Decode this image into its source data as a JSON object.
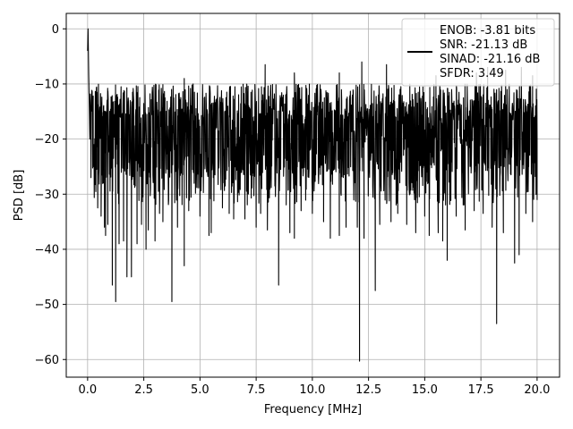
{
  "chart_data": {
    "type": "line",
    "title": "",
    "xlabel": "Frequency [MHz]",
    "ylabel": "PSD [dB]",
    "xlim": [
      -0.95,
      21.0
    ],
    "ylim": [
      -63.2,
      2.8
    ],
    "xticks": [
      0.0,
      2.5,
      5.0,
      7.5,
      10.0,
      12.5,
      15.0,
      17.5,
      20.0
    ],
    "xtick_labels": [
      "0.0",
      "2.5",
      "5.0",
      "7.5",
      "10.0",
      "12.5",
      "15.0",
      "17.5",
      "20.0"
    ],
    "yticks": [
      0,
      -10,
      -20,
      -30,
      -40,
      -50,
      -60
    ],
    "ytick_labels": [
      "0",
      "−10",
      "−20",
      "−30",
      "−40",
      "−50",
      "−60"
    ],
    "grid": true,
    "legend_position": "top-right",
    "series": [
      {
        "name": "ENOB: -3.81 bits\nSNR: -21.13 dB\nSINAD: -21.16 dB\nSFDR: 3.49",
        "color": "#000000",
        "x_range": [
          0.0,
          20.0
        ],
        "baseline_range": [
          -32,
          -10
        ],
        "points": [
          [
            0.0,
            -4.0
          ],
          [
            0.02,
            0.0
          ],
          [
            0.05,
            -8.5
          ],
          [
            0.08,
            -15.0
          ],
          [
            0.1,
            -20.0
          ],
          [
            0.15,
            -27.0
          ],
          [
            0.25,
            -23.0
          ],
          [
            0.4,
            -25.5
          ],
          [
            0.45,
            -32.5
          ],
          [
            0.6,
            -34.0
          ],
          [
            0.7,
            -28.0
          ],
          [
            0.75,
            -36.0
          ],
          [
            0.8,
            -37.5
          ],
          [
            0.9,
            -35.5
          ],
          [
            1.1,
            -46.5
          ],
          [
            1.25,
            -49.5
          ],
          [
            1.4,
            -39.0
          ],
          [
            1.6,
            -38.5
          ],
          [
            1.75,
            -45.0
          ],
          [
            1.95,
            -45.0
          ],
          [
            2.2,
            -39.0
          ],
          [
            2.4,
            -35.5
          ],
          [
            2.6,
            -40.0
          ],
          [
            2.7,
            -36.5
          ],
          [
            3.0,
            -38.5
          ],
          [
            3.2,
            -33.5
          ],
          [
            3.35,
            -35.0
          ],
          [
            3.75,
            -49.5
          ],
          [
            4.0,
            -36.0
          ],
          [
            4.3,
            -43.0
          ],
          [
            4.5,
            -33.0
          ],
          [
            5.0,
            -34.0
          ],
          [
            5.4,
            -37.5
          ],
          [
            5.5,
            -37.0
          ],
          [
            6.0,
            -32.5
          ],
          [
            6.3,
            -33.5
          ],
          [
            6.5,
            -34.5
          ],
          [
            7.0,
            -34.5
          ],
          [
            7.5,
            -36.0
          ],
          [
            7.7,
            -33.5
          ],
          [
            8.0,
            -36.5
          ],
          [
            8.5,
            -46.5
          ],
          [
            9.0,
            -37.0
          ],
          [
            9.2,
            -38.0
          ],
          [
            9.5,
            -33.0
          ],
          [
            10.0,
            -33.5
          ],
          [
            10.5,
            -35.0
          ],
          [
            10.8,
            -38.0
          ],
          [
            11.2,
            -37.5
          ],
          [
            11.5,
            -36.0
          ],
          [
            12.0,
            -36.0
          ],
          [
            12.1,
            -60.3
          ],
          [
            12.3,
            -38.0
          ],
          [
            12.8,
            -47.5
          ],
          [
            13.0,
            -35.5
          ],
          [
            13.5,
            -35.0
          ],
          [
            13.8,
            -33.5
          ],
          [
            14.2,
            -35.5
          ],
          [
            14.6,
            -37.0
          ],
          [
            15.0,
            -34.0
          ],
          [
            15.2,
            -37.5
          ],
          [
            15.6,
            -37.0
          ],
          [
            15.8,
            -38.5
          ],
          [
            16.0,
            -42.0
          ],
          [
            16.4,
            -34.0
          ],
          [
            16.8,
            -36.5
          ],
          [
            17.2,
            -33.0
          ],
          [
            17.6,
            -33.5
          ],
          [
            18.0,
            -36.0
          ],
          [
            18.2,
            -53.5
          ],
          [
            18.5,
            -37.0
          ],
          [
            19.0,
            -42.5
          ],
          [
            19.2,
            -41.0
          ],
          [
            19.5,
            -33.5
          ],
          [
            19.8,
            -35.0
          ],
          [
            20.0,
            -20.0
          ],
          [
            2.0,
            -11.5
          ],
          [
            4.3,
            -9.0
          ],
          [
            7.9,
            -6.5
          ],
          [
            9.2,
            -8.0
          ],
          [
            11.2,
            -8.0
          ],
          [
            12.2,
            -6.0
          ],
          [
            13.3,
            -6.5
          ],
          [
            15.5,
            -8.5
          ],
          [
            17.3,
            -8.0
          ],
          [
            17.8,
            -7.0
          ],
          [
            18.6,
            -7.5
          ],
          [
            19.3,
            -7.0
          ],
          [
            19.8,
            -8.5
          ]
        ]
      }
    ]
  }
}
